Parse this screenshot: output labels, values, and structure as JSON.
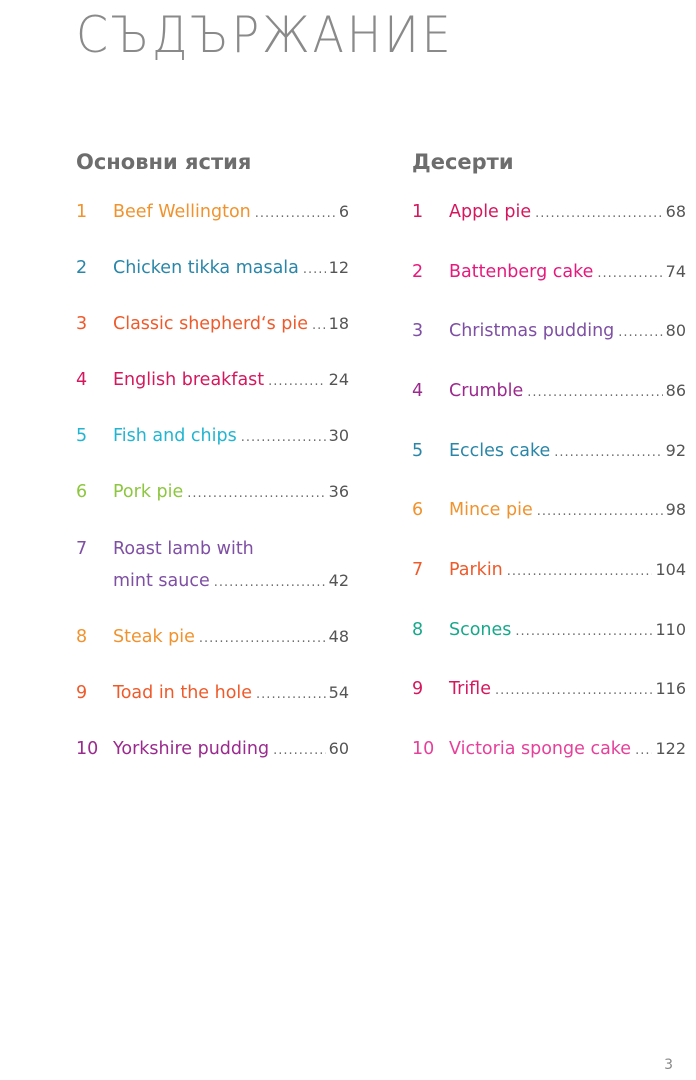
{
  "title": "СЪДЪРЖАНИЕ",
  "main_dishes": {
    "heading": "Основни ястия",
    "items": [
      {
        "num": "1",
        "lines": [
          "Beef Wellington"
        ],
        "page": "6",
        "color": "#f0932e"
      },
      {
        "num": "2",
        "lines": [
          "Chicken tikka masala"
        ],
        "page": "12",
        "color": "#2a86a8"
      },
      {
        "num": "3",
        "lines": [
          "Classic shepherd‘s pie"
        ],
        "page": "18",
        "color": "#ef5a2a"
      },
      {
        "num": "4",
        "lines": [
          "English breakfast"
        ],
        "page": "24",
        "color": "#d6175c"
      },
      {
        "num": "5",
        "lines": [
          "Fish and chips"
        ],
        "page": "30",
        "color": "#21b5d1"
      },
      {
        "num": "6",
        "lines": [
          "Pork pie"
        ],
        "page": "36",
        "color": "#8dc63f"
      },
      {
        "num": "7",
        "lines": [
          "Roast lamb with",
          "mint sauce"
        ],
        "page": "42",
        "color": "#7e4fa3"
      },
      {
        "num": "8",
        "lines": [
          "Steak pie"
        ],
        "page": "48",
        "color": "#f0932e"
      },
      {
        "num": "9",
        "lines": [
          "Toad in the hole"
        ],
        "page": "54",
        "color": "#ef5a2a"
      },
      {
        "num": "10",
        "lines": [
          "Yorkshire pudding"
        ],
        "page": "60",
        "color": "#9b2a8e"
      }
    ]
  },
  "desserts": {
    "heading": "Десерти",
    "items": [
      {
        "num": "1",
        "lines": [
          "Apple pie"
        ],
        "page": "68",
        "color": "#d6175c"
      },
      {
        "num": "2",
        "lines": [
          "Battenberg cake"
        ],
        "page": "74",
        "color": "#e6197d"
      },
      {
        "num": "3",
        "lines": [
          "Christmas pudding"
        ],
        "page": "80",
        "color": "#7e4fa3"
      },
      {
        "num": "4",
        "lines": [
          "Crumble"
        ],
        "page": "86",
        "color": "#9b2a8e"
      },
      {
        "num": "5",
        "lines": [
          "Eccles cake"
        ],
        "page": "92",
        "color": "#2a86a8"
      },
      {
        "num": "6",
        "lines": [
          "Mince pie"
        ],
        "page": "98",
        "color": "#f0932e"
      },
      {
        "num": "7",
        "lines": [
          "Parkin"
        ],
        "page": "104",
        "color": "#ef5a2a"
      },
      {
        "num": "8",
        "lines": [
          "Scones"
        ],
        "page": "110",
        "color": "#17a88a"
      },
      {
        "num": "9",
        "lines": [
          "Trifle"
        ],
        "page": "116",
        "color": "#d6175c"
      },
      {
        "num": "10",
        "lines": [
          "Victoria sponge cake"
        ],
        "page": "122",
        "color": "#e6409a"
      }
    ]
  },
  "page_number": "3"
}
